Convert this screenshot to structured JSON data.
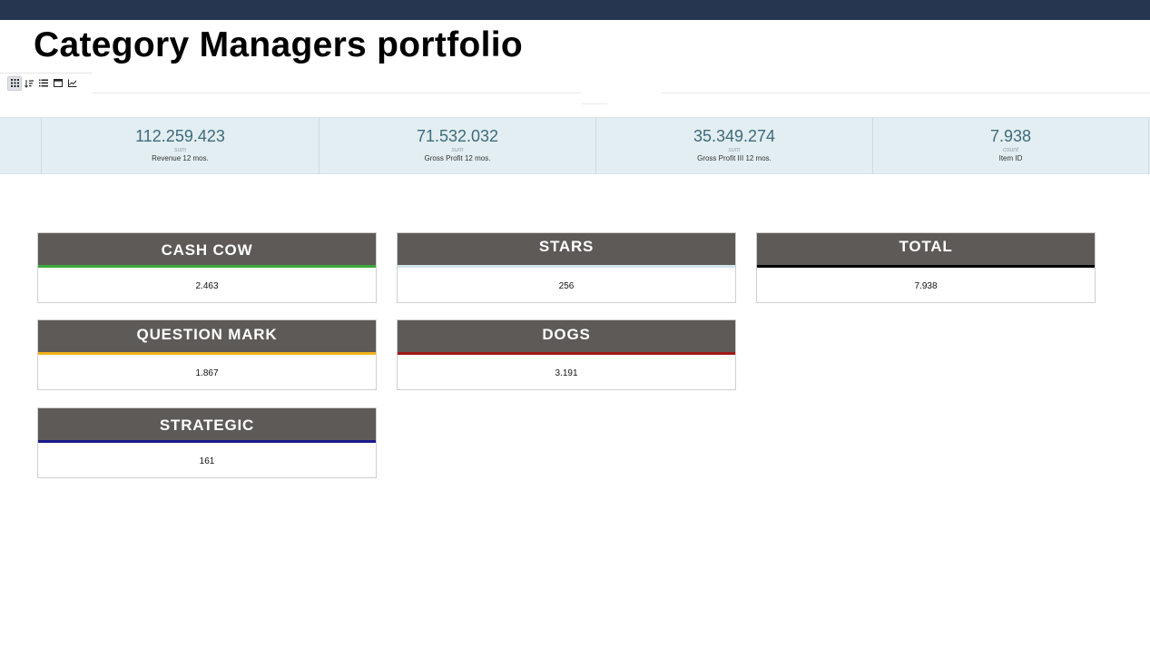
{
  "title": "Category Managers portfolio",
  "toolbar": {
    "buttons": [
      {
        "icon": "grid-icon",
        "active": true
      },
      {
        "icon": "sort-icon",
        "active": false
      },
      {
        "icon": "list-icon",
        "active": false
      },
      {
        "icon": "window-icon",
        "active": false
      },
      {
        "icon": "line-chart-icon",
        "active": false
      }
    ]
  },
  "kpis": [
    {
      "value": "112.259.423",
      "agg": "sum",
      "label": "Revenue 12 mos."
    },
    {
      "value": "71.532.032",
      "agg": "sum",
      "label": "Gross Profit 12 mos."
    },
    {
      "value": "35.349.274",
      "agg": "sum",
      "label": "Gross Profit III 12 mos."
    },
    {
      "value": "7.938",
      "agg": "count",
      "label": "Item ID"
    }
  ],
  "cards": [
    {
      "title": "CASH COW",
      "value": "2.463",
      "accent": "#3aa83a"
    },
    {
      "title": "STARS",
      "value": "256",
      "accent": "#cfe6ea"
    },
    {
      "title": "TOTAL",
      "value": "7.938",
      "accent": "#000000"
    },
    {
      "title": "QUESTION MARK",
      "value": "1.867",
      "accent": "#f2b21b"
    },
    {
      "title": "DOGS",
      "value": "3.191",
      "accent": "#a01818"
    },
    {
      "title": "STRATEGIC",
      "value": "161",
      "accent": "#1a1a8a"
    }
  ],
  "colors": {
    "topbar": "#263650",
    "kpi_band": "#e2eef1",
    "kpi_value": "#3e6a7b",
    "card_header": "#5e5a58"
  }
}
